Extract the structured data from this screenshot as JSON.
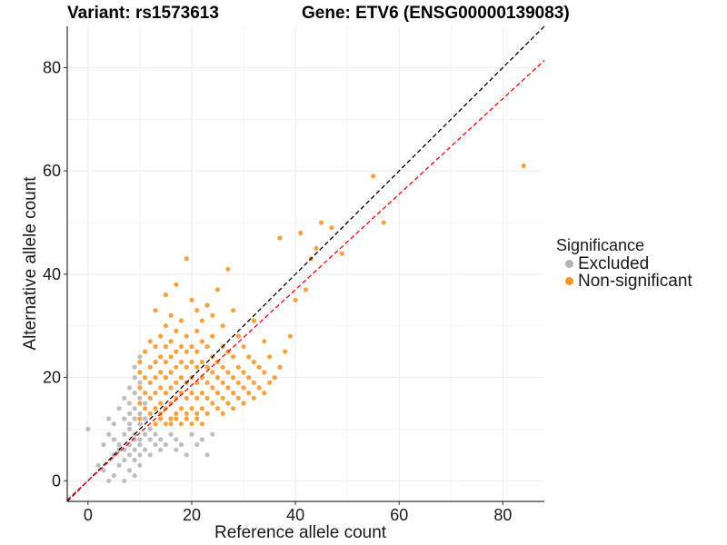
{
  "chart_data": {
    "type": "scatter",
    "title_left": "Variant: rs1573613",
    "title_right": "Gene: ETV6 (ENSG00000139083)",
    "xlabel": "Reference allele count",
    "ylabel": "Alternative allele count",
    "xlim": [
      -4,
      88
    ],
    "ylim": [
      -4,
      88
    ],
    "xticks": [
      0,
      20,
      40,
      60,
      80
    ],
    "yticks": [
      0,
      20,
      40,
      60,
      80
    ],
    "legend": {
      "title": "Significance",
      "position": "right",
      "entries": [
        {
          "label": "Excluded",
          "color": "#b3b3b3"
        },
        {
          "label": "Non-significant",
          "color": "#f7931e"
        }
      ]
    },
    "reference_lines": [
      {
        "name": "identity",
        "slope": 1,
        "intercept": 0,
        "color": "#000000",
        "style": "dashed"
      },
      {
        "name": "fit",
        "slope": 0.925,
        "intercept": 0,
        "color": "#ff0000",
        "style": "dashed"
      }
    ],
    "series": [
      {
        "name": "Excluded",
        "color": "#b3b3b3",
        "points": [
          [
            0,
            10
          ],
          [
            2,
            3
          ],
          [
            3,
            7
          ],
          [
            3,
            2
          ],
          [
            4,
            0
          ],
          [
            4,
            12
          ],
          [
            4,
            9
          ],
          [
            5,
            1
          ],
          [
            5,
            5
          ],
          [
            5,
            8
          ],
          [
            5,
            11
          ],
          [
            6,
            7
          ],
          [
            6,
            3
          ],
          [
            6,
            14
          ],
          [
            6,
            6
          ],
          [
            7,
            0
          ],
          [
            7,
            4
          ],
          [
            7,
            9
          ],
          [
            7,
            16
          ],
          [
            7,
            12
          ],
          [
            7,
            6
          ],
          [
            8,
            2
          ],
          [
            8,
            5
          ],
          [
            8,
            10
          ],
          [
            8,
            13
          ],
          [
            8,
            15
          ],
          [
            8,
            18
          ],
          [
            8,
            7
          ],
          [
            8,
            11
          ],
          [
            9,
            1
          ],
          [
            9,
            6
          ],
          [
            9,
            9
          ],
          [
            9,
            12
          ],
          [
            9,
            14
          ],
          [
            9,
            17
          ],
          [
            9,
            8
          ],
          [
            9,
            20
          ],
          [
            9,
            4
          ],
          [
            9,
            22
          ],
          [
            10,
            3
          ],
          [
            10,
            5
          ],
          [
            10,
            8
          ],
          [
            10,
            11
          ],
          [
            10,
            13
          ],
          [
            10,
            16
          ],
          [
            10,
            19
          ],
          [
            10,
            24
          ],
          [
            10,
            7
          ],
          [
            11,
            9
          ],
          [
            11,
            12
          ],
          [
            11,
            6
          ],
          [
            11,
            15
          ],
          [
            12,
            8
          ],
          [
            12,
            10
          ],
          [
            12,
            5
          ],
          [
            13,
            7
          ],
          [
            13,
            9
          ],
          [
            14,
            6
          ],
          [
            14,
            8
          ],
          [
            15,
            7
          ],
          [
            16,
            9
          ],
          [
            17,
            6
          ],
          [
            17,
            8
          ],
          [
            18,
            7
          ],
          [
            19,
            5
          ],
          [
            20,
            9
          ],
          [
            21,
            7
          ],
          [
            22,
            8
          ],
          [
            23,
            5
          ],
          [
            24,
            9
          ]
        ]
      },
      {
        "name": "Non-significant",
        "color": "#f7931e",
        "points": [
          [
            10,
            12
          ],
          [
            10,
            15
          ],
          [
            10,
            18
          ],
          [
            10,
            21
          ],
          [
            10,
            23
          ],
          [
            11,
            14
          ],
          [
            11,
            17
          ],
          [
            11,
            20
          ],
          [
            11,
            25
          ],
          [
            12,
            13
          ],
          [
            12,
            16
          ],
          [
            12,
            19
          ],
          [
            12,
            22
          ],
          [
            12,
            27
          ],
          [
            13,
            11
          ],
          [
            13,
            14
          ],
          [
            13,
            17
          ],
          [
            13,
            20
          ],
          [
            13,
            23
          ],
          [
            13,
            26
          ],
          [
            13,
            33
          ],
          [
            14,
            12
          ],
          [
            14,
            15
          ],
          [
            14,
            18
          ],
          [
            14,
            21
          ],
          [
            14,
            24
          ],
          [
            14,
            28
          ],
          [
            14,
            13
          ],
          [
            15,
            11
          ],
          [
            15,
            14
          ],
          [
            15,
            17
          ],
          [
            15,
            20
          ],
          [
            15,
            23
          ],
          [
            15,
            26
          ],
          [
            15,
            30
          ],
          [
            15,
            36
          ],
          [
            16,
            12
          ],
          [
            16,
            15
          ],
          [
            16,
            18
          ],
          [
            16,
            21
          ],
          [
            16,
            24
          ],
          [
            16,
            27
          ],
          [
            16,
            32
          ],
          [
            16,
            11
          ],
          [
            17,
            13
          ],
          [
            17,
            16
          ],
          [
            17,
            19
          ],
          [
            17,
            22
          ],
          [
            17,
            25
          ],
          [
            17,
            29
          ],
          [
            17,
            38
          ],
          [
            17,
            12
          ],
          [
            18,
            14
          ],
          [
            18,
            17
          ],
          [
            18,
            20
          ],
          [
            18,
            23
          ],
          [
            18,
            26
          ],
          [
            18,
            31
          ],
          [
            18,
            11
          ],
          [
            19,
            13
          ],
          [
            19,
            16
          ],
          [
            19,
            19
          ],
          [
            19,
            22
          ],
          [
            19,
            25
          ],
          [
            19,
            28
          ],
          [
            19,
            43
          ],
          [
            19,
            12
          ],
          [
            20,
            14
          ],
          [
            20,
            17
          ],
          [
            20,
            20
          ],
          [
            20,
            23
          ],
          [
            20,
            26
          ],
          [
            20,
            35
          ],
          [
            20,
            11
          ],
          [
            21,
            13
          ],
          [
            21,
            16
          ],
          [
            21,
            19
          ],
          [
            21,
            22
          ],
          [
            21,
            25
          ],
          [
            21,
            29
          ],
          [
            21,
            33
          ],
          [
            21,
            12
          ],
          [
            22,
            14
          ],
          [
            22,
            17
          ],
          [
            22,
            20
          ],
          [
            22,
            23
          ],
          [
            22,
            27
          ],
          [
            22,
            31
          ],
          [
            22,
            11
          ],
          [
            23,
            13
          ],
          [
            23,
            16
          ],
          [
            23,
            19
          ],
          [
            23,
            22
          ],
          [
            23,
            26
          ],
          [
            23,
            34
          ],
          [
            24,
            15
          ],
          [
            24,
            18
          ],
          [
            24,
            21
          ],
          [
            24,
            24
          ],
          [
            24,
            28
          ],
          [
            24,
            32
          ],
          [
            25,
            14
          ],
          [
            25,
            17
          ],
          [
            25,
            20
          ],
          [
            25,
            23
          ],
          [
            25,
            37
          ],
          [
            26,
            13
          ],
          [
            26,
            16
          ],
          [
            26,
            19
          ],
          [
            26,
            22
          ],
          [
            26,
            26
          ],
          [
            26,
            30
          ],
          [
            27,
            15
          ],
          [
            27,
            18
          ],
          [
            27,
            21
          ],
          [
            27,
            25
          ],
          [
            27,
            41
          ],
          [
            28,
            14
          ],
          [
            28,
            17
          ],
          [
            28,
            20
          ],
          [
            28,
            24
          ],
          [
            28,
            33
          ],
          [
            29,
            16
          ],
          [
            29,
            19
          ],
          [
            29,
            22
          ],
          [
            29,
            28
          ],
          [
            30,
            15
          ],
          [
            30,
            18
          ],
          [
            30,
            21
          ],
          [
            30,
            26
          ],
          [
            31,
            17
          ],
          [
            31,
            20
          ],
          [
            31,
            24
          ],
          [
            32,
            16
          ],
          [
            32,
            19
          ],
          [
            32,
            23
          ],
          [
            32,
            31
          ],
          [
            33,
            18
          ],
          [
            33,
            22
          ],
          [
            34,
            17
          ],
          [
            34,
            21
          ],
          [
            34,
            27
          ],
          [
            35,
            19
          ],
          [
            35,
            24
          ],
          [
            36,
            20
          ],
          [
            37,
            22
          ],
          [
            37,
            47
          ],
          [
            38,
            25
          ],
          [
            39,
            28
          ],
          [
            40,
            35
          ],
          [
            41,
            48
          ],
          [
            42,
            37
          ],
          [
            43,
            43
          ],
          [
            44,
            45
          ],
          [
            45,
            50
          ],
          [
            47,
            49
          ],
          [
            49,
            44
          ],
          [
            55,
            59
          ],
          [
            57,
            50
          ],
          [
            84,
            61
          ]
        ]
      }
    ]
  }
}
